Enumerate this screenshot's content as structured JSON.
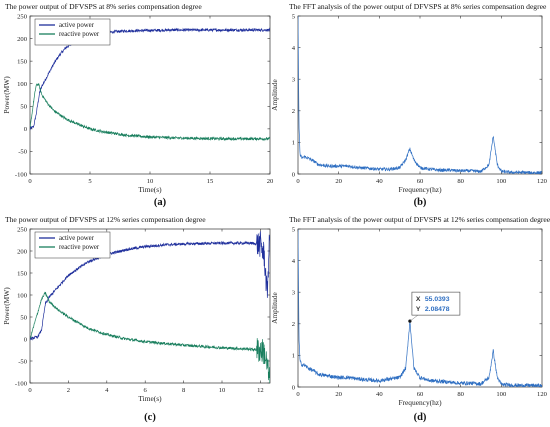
{
  "chart_data": [
    {
      "id": "a",
      "type": "line",
      "title": "The power output of DFVSPS at 8% series compensation degree",
      "xlabel": "Time(s)",
      "ylabel": "Power(MW)",
      "caption": "(a)",
      "xlim": [
        0,
        20
      ],
      "ylim": [
        -100,
        250
      ],
      "xticks": [
        "0",
        "5",
        "10",
        "15",
        "20"
      ],
      "yticks": [
        "-100",
        "-50",
        "0",
        "50",
        "100",
        "150",
        "200",
        "250"
      ],
      "legend_position": "top-left",
      "series": [
        {
          "name": "active power",
          "color": "#1f2f9c",
          "noise": 3,
          "x": [
            0,
            0.3,
            0.5,
            0.8,
            1.0,
            1.5,
            2,
            2.5,
            3,
            4,
            5,
            6,
            7,
            8,
            10,
            12,
            14,
            16,
            18,
            20
          ],
          "y": [
            0,
            5,
            30,
            80,
            95,
            120,
            145,
            165,
            180,
            198,
            207,
            212,
            215,
            217,
            218,
            219,
            219,
            219,
            219,
            219
          ]
        },
        {
          "name": "reactive power",
          "color": "#1a7f5e",
          "noise": 3,
          "x": [
            0,
            0.3,
            0.5,
            0.7,
            1.0,
            1.5,
            2,
            3,
            4,
            5,
            6,
            8,
            10,
            12,
            14,
            16,
            18,
            20
          ],
          "y": [
            0,
            60,
            95,
            100,
            75,
            55,
            40,
            22,
            10,
            0,
            -6,
            -14,
            -18,
            -20,
            -21,
            -22,
            -22,
            -22
          ]
        }
      ]
    },
    {
      "id": "b",
      "type": "line",
      "title": "The FFT analysis of the power output of DFVSPS at 8% series compensation degree",
      "xlabel": "Frequency(hz)",
      "ylabel": "Amplitude",
      "caption": "(b)",
      "xlim": [
        0,
        120
      ],
      "ylim": [
        0,
        5
      ],
      "xticks": [
        "0",
        "20",
        "40",
        "60",
        "80",
        "100",
        "120"
      ],
      "yticks": [
        "0",
        "1",
        "2",
        "3",
        "4",
        "5"
      ],
      "series": [
        {
          "name": "",
          "color": "#2f6fc2",
          "noise": 0.05,
          "x": [
            0,
            0.5,
            1,
            2,
            3,
            5,
            8,
            10,
            15,
            20,
            25,
            30,
            35,
            40,
            45,
            50,
            53,
            55,
            57,
            60,
            65,
            70,
            75,
            80,
            85,
            90,
            94,
            96,
            98,
            100,
            105,
            110,
            115,
            120
          ],
          "y": [
            5,
            1.5,
            0.6,
            0.5,
            0.55,
            0.5,
            0.4,
            0.3,
            0.25,
            0.25,
            0.25,
            0.2,
            0.18,
            0.15,
            0.15,
            0.2,
            0.45,
            0.8,
            0.45,
            0.2,
            0.15,
            0.12,
            0.12,
            0.1,
            0.1,
            0.08,
            0.3,
            1.2,
            0.3,
            0.08,
            0.05,
            0.05,
            0.04,
            0.04
          ]
        }
      ]
    },
    {
      "id": "c",
      "type": "line",
      "title": "The power output of DFVSPS at 12% series compensation degree",
      "xlabel": "Time(s)",
      "ylabel": "Power(MW)",
      "caption": "(c)",
      "xlim": [
        0,
        12.5
      ],
      "ylim": [
        -100,
        250
      ],
      "xticks": [
        "0",
        "2",
        "4",
        "6",
        "8",
        "10",
        "12"
      ],
      "yticks": [
        "-100",
        "-50",
        "0",
        "50",
        "100",
        "150",
        "200",
        "250"
      ],
      "legend_position": "top-left",
      "series": [
        {
          "name": "active power",
          "color": "#1f2f9c",
          "noise": 3,
          "x": [
            0,
            0.4,
            0.6,
            0.8,
            1.0,
            1.5,
            2,
            3,
            4,
            5,
            6,
            7,
            8,
            9,
            10,
            11,
            11.5,
            12,
            12.2,
            12.35,
            12.5
          ],
          "y": [
            0,
            5,
            20,
            80,
            95,
            120,
            145,
            175,
            192,
            203,
            210,
            214,
            216,
            217,
            218,
            218,
            218,
            215,
            190,
            100,
            250
          ]
        },
        {
          "name": "reactive power",
          "color": "#1a7f5e",
          "noise": 3,
          "x": [
            0,
            0.4,
            0.6,
            0.8,
            1.0,
            1.5,
            2,
            3,
            4,
            5,
            6,
            7,
            8,
            9,
            10,
            11,
            11.5,
            12,
            12.2,
            12.35,
            12.5
          ],
          "y": [
            0,
            60,
            90,
            105,
            85,
            65,
            50,
            25,
            10,
            0,
            -6,
            -10,
            -14,
            -17,
            -20,
            -22,
            -23,
            -25,
            -30,
            -60,
            -100
          ]
        }
      ]
    },
    {
      "id": "d",
      "type": "line",
      "title": "The FFT analysis of the power output of DFVSPS at 12% series compensation degree",
      "xlabel": "Frequency(hz)",
      "ylabel": "Amplitude",
      "caption": "(d)",
      "xlim": [
        0,
        120
      ],
      "ylim": [
        0,
        5
      ],
      "xticks": [
        "0",
        "20",
        "40",
        "60",
        "80",
        "100",
        "120"
      ],
      "yticks": [
        "0",
        "1",
        "2",
        "3",
        "4",
        "5"
      ],
      "series": [
        {
          "name": "",
          "color": "#2f6fc2",
          "noise": 0.06,
          "x": [
            0,
            0.5,
            1,
            2,
            3,
            5,
            8,
            10,
            15,
            20,
            25,
            30,
            35,
            40,
            45,
            50,
            53,
            55.0393,
            57,
            60,
            65,
            70,
            75,
            80,
            85,
            90,
            94,
            96,
            98,
            100,
            105,
            110,
            115,
            120
          ],
          "y": [
            5,
            1.5,
            0.8,
            0.7,
            0.7,
            0.6,
            0.5,
            0.4,
            0.35,
            0.3,
            0.3,
            0.25,
            0.22,
            0.2,
            0.25,
            0.3,
            0.6,
            2.08478,
            0.6,
            0.3,
            0.2,
            0.18,
            0.15,
            0.12,
            0.12,
            0.1,
            0.3,
            1.15,
            0.3,
            0.08,
            0.06,
            0.05,
            0.05,
            0.04
          ]
        }
      ],
      "datatip": {
        "x_label": "X",
        "y_label": "Y",
        "x_value": "55.0393",
        "y_value": "2.08478",
        "x": 55.0393,
        "y": 2.08478,
        "color": "#2f6fc2"
      }
    }
  ]
}
